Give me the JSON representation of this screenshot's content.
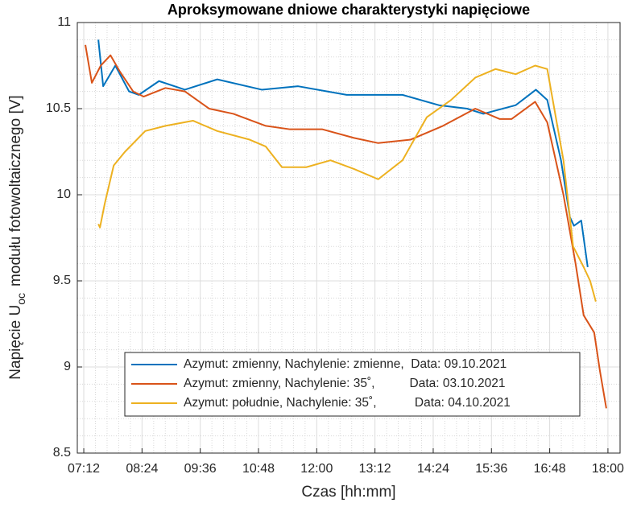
{
  "chart_data": {
    "type": "line",
    "title": "Aproksymowane dniowe charakterystyki napięciowe",
    "xlabel": "Czas [hh:mm]",
    "ylabel": {
      "main": "Napięcie U",
      "sub": "oc",
      "rest": "modułu fotowoltaicznego [V]"
    },
    "xlim": [
      424,
      1095
    ],
    "ylim": [
      8.5,
      11
    ],
    "xticks": [
      {
        "value": 432,
        "label": "07:12"
      },
      {
        "value": 504,
        "label": "08:24"
      },
      {
        "value": 576,
        "label": "09:36"
      },
      {
        "value": 648,
        "label": "10:48"
      },
      {
        "value": 720,
        "label": "12:00"
      },
      {
        "value": 792,
        "label": "13:12"
      },
      {
        "value": 864,
        "label": "14:24"
      },
      {
        "value": 936,
        "label": "15:36"
      },
      {
        "value": 1008,
        "label": "16:48"
      },
      {
        "value": 1080,
        "label": "18:00"
      }
    ],
    "yticks": [
      8.5,
      9,
      9.5,
      10,
      10.5,
      11
    ],
    "grid": true,
    "minor_grid": true,
    "legend": "lower-right",
    "series": [
      {
        "name": "Azymut: zmienny, Nachylenie: zmienne,  Data: 09.10.2021",
        "color": "#0072bd",
        "x": [
          450,
          456,
          471,
          488,
          500,
          525,
          557,
          597,
          652,
          697,
          757,
          826,
          871,
          906,
          926,
          966,
          991,
          1005,
          1022,
          1033,
          1038,
          1047,
          1055
        ],
        "values": [
          10.9,
          10.63,
          10.75,
          10.6,
          10.58,
          10.66,
          10.61,
          10.67,
          10.61,
          10.63,
          10.58,
          10.58,
          10.52,
          10.5,
          10.47,
          10.52,
          10.61,
          10.55,
          10.2,
          9.87,
          9.82,
          9.85,
          9.58
        ]
      },
      {
        "name": "Azymut: zmienny, Nachylenie: 35˚,          Data: 03.10.2021",
        "color": "#d95319",
        "x": [
          434,
          442,
          453,
          465,
          476,
          493,
          506,
          533,
          557,
          587,
          617,
          657,
          687,
          727,
          766,
          796,
          836,
          876,
          916,
          946,
          961,
          990,
          1005,
          1025,
          1040,
          1050,
          1063,
          1070,
          1078
        ],
        "values": [
          10.87,
          10.65,
          10.75,
          10.81,
          10.72,
          10.6,
          10.57,
          10.62,
          10.6,
          10.5,
          10.47,
          10.4,
          10.38,
          10.38,
          10.33,
          10.3,
          10.32,
          10.4,
          10.5,
          10.44,
          10.44,
          10.54,
          10.42,
          10.0,
          9.6,
          9.3,
          9.2,
          8.98,
          8.76
        ]
      },
      {
        "name": "Azymut: południe, Nachylenie: 35˚,           Data: 04.10.2021",
        "color": "#edb120",
        "x": [
          450,
          452,
          458,
          469,
          483,
          508,
          533,
          567,
          597,
          637,
          657,
          677,
          707,
          737,
          766,
          796,
          826,
          856,
          886,
          916,
          941,
          966,
          990,
          1005,
          1025,
          1037,
          1050,
          1058,
          1065
        ],
        "values": [
          9.83,
          9.81,
          9.95,
          10.17,
          10.25,
          10.37,
          10.4,
          10.43,
          10.37,
          10.32,
          10.28,
          10.16,
          10.16,
          10.2,
          10.15,
          10.09,
          10.2,
          10.45,
          10.55,
          10.68,
          10.73,
          10.7,
          10.75,
          10.73,
          10.2,
          9.7,
          9.58,
          9.5,
          9.38
        ]
      }
    ]
  }
}
